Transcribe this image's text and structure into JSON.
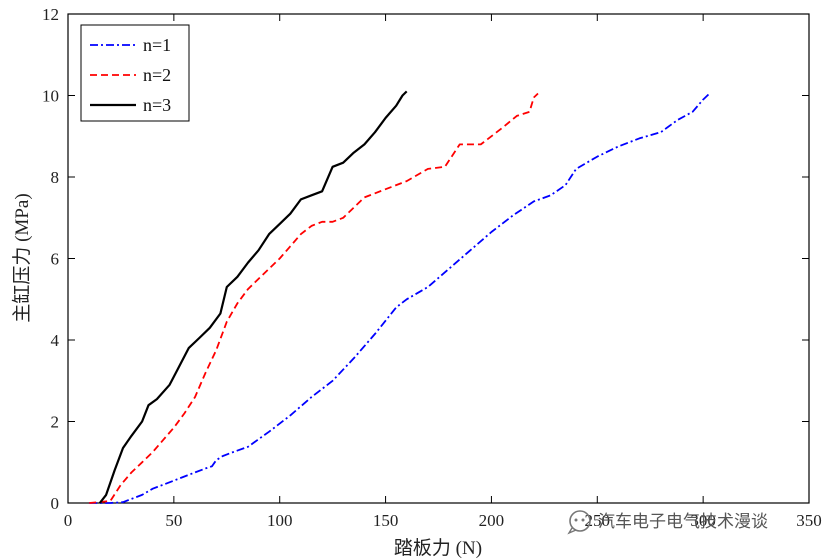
{
  "watermark": {
    "text": "汽车电子电气技术漫谈",
    "icon": "chat-bubble-icon"
  },
  "chart_data": {
    "type": "line",
    "xlabel": "踏板力 (N)",
    "ylabel": "主缸压力 (MPa)",
    "xlim": [
      0,
      350
    ],
    "ylim": [
      0,
      12
    ],
    "xticks": [
      0,
      50,
      100,
      150,
      200,
      250,
      300,
      350
    ],
    "yticks": [
      0,
      2,
      4,
      6,
      8,
      10,
      12
    ],
    "grid": false,
    "legend_position": "top-left",
    "series": [
      {
        "name": "n=1",
        "color": "#0000ff",
        "dash": "dashdot",
        "points": [
          [
            10,
            0
          ],
          [
            20,
            0
          ],
          [
            26,
            0.02
          ],
          [
            30,
            0.1
          ],
          [
            35,
            0.2
          ],
          [
            40,
            0.35
          ],
          [
            45,
            0.45
          ],
          [
            50,
            0.55
          ],
          [
            55,
            0.65
          ],
          [
            60,
            0.75
          ],
          [
            65,
            0.85
          ],
          [
            68,
            0.9
          ],
          [
            70,
            1.05
          ],
          [
            73,
            1.15
          ],
          [
            78,
            1.25
          ],
          [
            85,
            1.38
          ],
          [
            95,
            1.75
          ],
          [
            105,
            2.15
          ],
          [
            115,
            2.6
          ],
          [
            125,
            3.0
          ],
          [
            135,
            3.55
          ],
          [
            145,
            4.15
          ],
          [
            155,
            4.8
          ],
          [
            160,
            5.0
          ],
          [
            170,
            5.3
          ],
          [
            180,
            5.75
          ],
          [
            190,
            6.2
          ],
          [
            200,
            6.65
          ],
          [
            210,
            7.05
          ],
          [
            220,
            7.4
          ],
          [
            228,
            7.55
          ],
          [
            235,
            7.8
          ],
          [
            240,
            8.2
          ],
          [
            250,
            8.5
          ],
          [
            260,
            8.75
          ],
          [
            270,
            8.95
          ],
          [
            280,
            9.1
          ],
          [
            288,
            9.4
          ],
          [
            295,
            9.6
          ],
          [
            300,
            9.9
          ],
          [
            303,
            10.05
          ]
        ]
      },
      {
        "name": "n=2",
        "color": "#ff0000",
        "dash": "dashed",
        "points": [
          [
            10,
            0
          ],
          [
            20,
            0.05
          ],
          [
            25,
            0.45
          ],
          [
            30,
            0.75
          ],
          [
            35,
            1.0
          ],
          [
            40,
            1.25
          ],
          [
            45,
            1.55
          ],
          [
            50,
            1.85
          ],
          [
            55,
            2.2
          ],
          [
            60,
            2.6
          ],
          [
            65,
            3.2
          ],
          [
            70,
            3.75
          ],
          [
            75,
            4.45
          ],
          [
            80,
            4.9
          ],
          [
            85,
            5.25
          ],
          [
            90,
            5.5
          ],
          [
            95,
            5.75
          ],
          [
            100,
            6.0
          ],
          [
            105,
            6.3
          ],
          [
            110,
            6.6
          ],
          [
            115,
            6.8
          ],
          [
            120,
            6.9
          ],
          [
            125,
            6.9
          ],
          [
            130,
            7.0
          ],
          [
            140,
            7.5
          ],
          [
            150,
            7.7
          ],
          [
            160,
            7.9
          ],
          [
            170,
            8.2
          ],
          [
            178,
            8.25
          ],
          [
            185,
            8.8
          ],
          [
            195,
            8.8
          ],
          [
            205,
            9.2
          ],
          [
            212,
            9.5
          ],
          [
            218,
            9.6
          ],
          [
            220,
            9.95
          ],
          [
            222,
            10.05
          ]
        ]
      },
      {
        "name": "n=3",
        "color": "#000000",
        "dash": "solid",
        "points": [
          [
            15,
            0
          ],
          [
            18,
            0.2
          ],
          [
            22,
            0.8
          ],
          [
            26,
            1.35
          ],
          [
            30,
            1.65
          ],
          [
            35,
            2.0
          ],
          [
            38,
            2.4
          ],
          [
            42,
            2.55
          ],
          [
            48,
            2.9
          ],
          [
            52,
            3.3
          ],
          [
            57,
            3.8
          ],
          [
            62,
            4.05
          ],
          [
            67,
            4.3
          ],
          [
            72,
            4.65
          ],
          [
            75,
            5.3
          ],
          [
            80,
            5.55
          ],
          [
            85,
            5.9
          ],
          [
            90,
            6.2
          ],
          [
            95,
            6.6
          ],
          [
            100,
            6.85
          ],
          [
            105,
            7.1
          ],
          [
            110,
            7.45
          ],
          [
            115,
            7.55
          ],
          [
            120,
            7.65
          ],
          [
            125,
            8.25
          ],
          [
            130,
            8.35
          ],
          [
            135,
            8.6
          ],
          [
            140,
            8.8
          ],
          [
            145,
            9.1
          ],
          [
            150,
            9.45
          ],
          [
            155,
            9.75
          ],
          [
            158,
            10.0
          ],
          [
            160,
            10.1
          ]
        ]
      }
    ]
  }
}
